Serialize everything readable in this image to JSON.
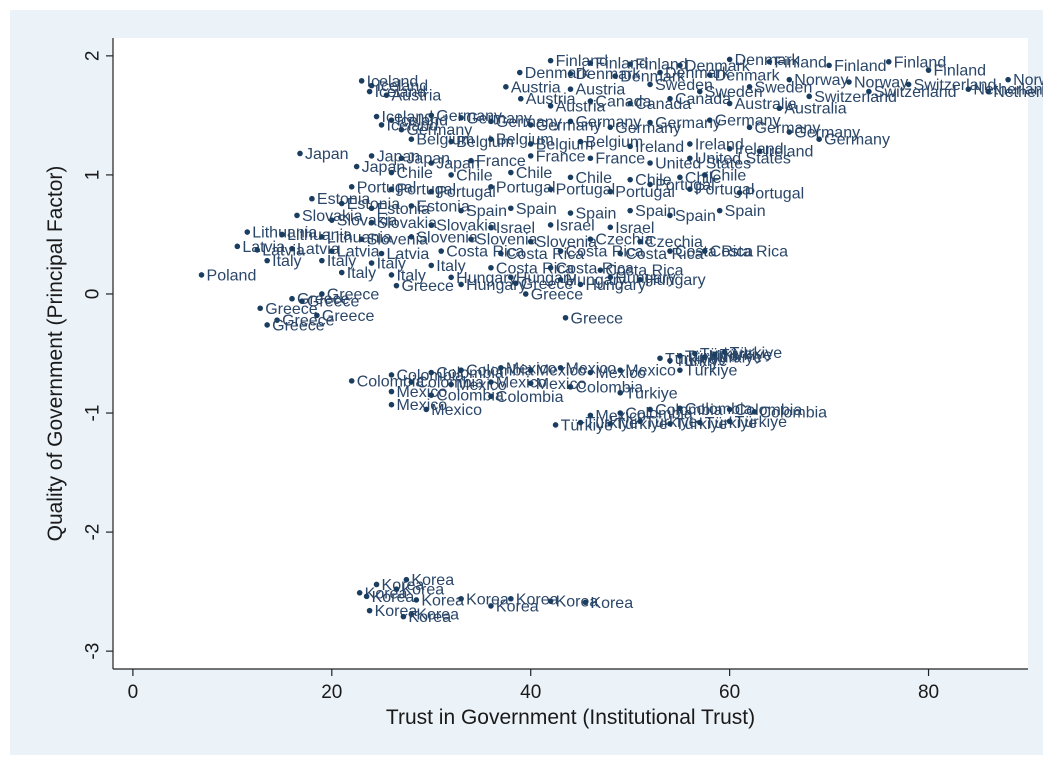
{
  "chart_data": {
    "type": "scatter",
    "title": "",
    "xlabel": "Trust in Government (Institutional Trust)",
    "ylabel": "Quality of Government (Principal Factor)",
    "xlim": [
      -2,
      90
    ],
    "ylim": [
      -3.15,
      2.15
    ],
    "xticks": [
      0,
      20,
      40,
      60,
      80
    ],
    "yticks": [
      -3,
      -2,
      -1,
      0,
      1,
      2
    ],
    "grid": false,
    "legend": "none",
    "marker_color": "#1a3d60",
    "label_color": "#2a4668",
    "background": "#ebf2f8",
    "plot_background": "#ffffff",
    "points": [
      {
        "x": 42.0,
        "y": 1.96,
        "label": "Finland"
      },
      {
        "x": 46.0,
        "y": 1.94,
        "label": "Finland"
      },
      {
        "x": 50.0,
        "y": 1.93,
        "label": "Finland"
      },
      {
        "x": 55.0,
        "y": 1.92,
        "label": "Denmark"
      },
      {
        "x": 60.0,
        "y": 1.97,
        "label": "Denmark"
      },
      {
        "x": 64.0,
        "y": 1.95,
        "label": "Finland"
      },
      {
        "x": 70.0,
        "y": 1.92,
        "label": "Finland"
      },
      {
        "x": 76.0,
        "y": 1.95,
        "label": "Finland"
      },
      {
        "x": 80.0,
        "y": 1.88,
        "label": "Finland"
      },
      {
        "x": 88.0,
        "y": 1.8,
        "label": "Norway"
      },
      {
        "x": 38.9,
        "y": 1.86,
        "label": "Denmark"
      },
      {
        "x": 44.0,
        "y": 1.85,
        "label": "Denmark"
      },
      {
        "x": 48.5,
        "y": 1.83,
        "label": "Denmark"
      },
      {
        "x": 53.0,
        "y": 1.86,
        "label": "Denmark"
      },
      {
        "x": 58.0,
        "y": 1.84,
        "label": "Denmark"
      },
      {
        "x": 66.0,
        "y": 1.8,
        "label": "Norway"
      },
      {
        "x": 72.0,
        "y": 1.78,
        "label": "Norway"
      },
      {
        "x": 78.0,
        "y": 1.76,
        "label": "Switzerland"
      },
      {
        "x": 84.0,
        "y": 1.72,
        "label": "Netherlands"
      },
      {
        "x": 86.0,
        "y": 1.7,
        "label": "Netherlands"
      },
      {
        "x": 37.5,
        "y": 1.74,
        "label": "Austria"
      },
      {
        "x": 44.0,
        "y": 1.72,
        "label": "Austria"
      },
      {
        "x": 52.0,
        "y": 1.76,
        "label": "Sweden"
      },
      {
        "x": 57.0,
        "y": 1.7,
        "label": "Sweden"
      },
      {
        "x": 62.0,
        "y": 1.74,
        "label": "Sweden"
      },
      {
        "x": 68.0,
        "y": 1.66,
        "label": "Switzerland"
      },
      {
        "x": 74.0,
        "y": 1.7,
        "label": "Switzerland"
      },
      {
        "x": 39.0,
        "y": 1.64,
        "label": "Austria"
      },
      {
        "x": 42.0,
        "y": 1.58,
        "label": "Austria"
      },
      {
        "x": 46.0,
        "y": 1.62,
        "label": "Canada"
      },
      {
        "x": 50.0,
        "y": 1.6,
        "label": "Canada"
      },
      {
        "x": 54.0,
        "y": 1.64,
        "label": "Canada"
      },
      {
        "x": 60.0,
        "y": 1.6,
        "label": "Australia"
      },
      {
        "x": 65.0,
        "y": 1.56,
        "label": "Australia"
      },
      {
        "x": 23.0,
        "y": 1.79,
        "label": "Iceland"
      },
      {
        "x": 24.0,
        "y": 1.75,
        "label": "Iceland"
      },
      {
        "x": 23.8,
        "y": 1.7,
        "label": "Iceland"
      },
      {
        "x": 25.5,
        "y": 1.67,
        "label": "Austria"
      },
      {
        "x": 24.5,
        "y": 1.49,
        "label": "Iceland"
      },
      {
        "x": 26.0,
        "y": 1.46,
        "label": "Iceland"
      },
      {
        "x": 25.0,
        "y": 1.42,
        "label": "Iceland"
      },
      {
        "x": 27.0,
        "y": 1.38,
        "label": "Germany"
      },
      {
        "x": 30.0,
        "y": 1.5,
        "label": "Germany"
      },
      {
        "x": 33.0,
        "y": 1.48,
        "label": "Germany"
      },
      {
        "x": 36.0,
        "y": 1.45,
        "label": "Germany"
      },
      {
        "x": 40.0,
        "y": 1.42,
        "label": "Germany"
      },
      {
        "x": 44.0,
        "y": 1.45,
        "label": "Germany"
      },
      {
        "x": 48.0,
        "y": 1.4,
        "label": "Germany"
      },
      {
        "x": 52.0,
        "y": 1.44,
        "label": "Germany"
      },
      {
        "x": 58.0,
        "y": 1.46,
        "label": "Germany"
      },
      {
        "x": 62.0,
        "y": 1.4,
        "label": "Germany"
      },
      {
        "x": 66.0,
        "y": 1.36,
        "label": "Germany"
      },
      {
        "x": 69.0,
        "y": 1.3,
        "label": "Germany"
      },
      {
        "x": 28.0,
        "y": 1.3,
        "label": "Belgium"
      },
      {
        "x": 32.0,
        "y": 1.28,
        "label": "Belgium"
      },
      {
        "x": 36.0,
        "y": 1.3,
        "label": "Belgium"
      },
      {
        "x": 40.0,
        "y": 1.26,
        "label": "Belgium"
      },
      {
        "x": 45.0,
        "y": 1.28,
        "label": "Belgium"
      },
      {
        "x": 50.0,
        "y": 1.24,
        "label": "Ireland"
      },
      {
        "x": 56.0,
        "y": 1.26,
        "label": "Ireland"
      },
      {
        "x": 60.0,
        "y": 1.22,
        "label": "Ireland"
      },
      {
        "x": 63.0,
        "y": 1.2,
        "label": "Ireland"
      },
      {
        "x": 16.8,
        "y": 1.18,
        "label": "Japan"
      },
      {
        "x": 24.0,
        "y": 1.16,
        "label": "Japan"
      },
      {
        "x": 27.0,
        "y": 1.14,
        "label": "Japan"
      },
      {
        "x": 30.0,
        "y": 1.1,
        "label": "Japan"
      },
      {
        "x": 22.5,
        "y": 1.07,
        "label": "Japan"
      },
      {
        "x": 34.0,
        "y": 1.12,
        "label": "France"
      },
      {
        "x": 40.0,
        "y": 1.16,
        "label": "France"
      },
      {
        "x": 46.0,
        "y": 1.14,
        "label": "France"
      },
      {
        "x": 52.0,
        "y": 1.1,
        "label": "United States"
      },
      {
        "x": 56.0,
        "y": 1.14,
        "label": "United States"
      },
      {
        "x": 26.0,
        "y": 1.02,
        "label": "Chile"
      },
      {
        "x": 32.0,
        "y": 1.0,
        "label": "Chile"
      },
      {
        "x": 38.0,
        "y": 1.02,
        "label": "Chile"
      },
      {
        "x": 44.0,
        "y": 0.98,
        "label": "Chile"
      },
      {
        "x": 50.0,
        "y": 0.96,
        "label": "Chile"
      },
      {
        "x": 55.0,
        "y": 0.98,
        "label": "Chile"
      },
      {
        "x": 57.5,
        "y": 1.0,
        "label": "Chile"
      },
      {
        "x": 22.0,
        "y": 0.9,
        "label": "Portugal"
      },
      {
        "x": 26.0,
        "y": 0.88,
        "label": "Portugal"
      },
      {
        "x": 30.0,
        "y": 0.86,
        "label": "Portugal"
      },
      {
        "x": 36.0,
        "y": 0.9,
        "label": "Portugal"
      },
      {
        "x": 42.0,
        "y": 0.88,
        "label": "Portugal"
      },
      {
        "x": 48.0,
        "y": 0.86,
        "label": "Portugal"
      },
      {
        "x": 52.0,
        "y": 0.92,
        "label": "Portugal"
      },
      {
        "x": 56.0,
        "y": 0.88,
        "label": "Portugal"
      },
      {
        "x": 61.0,
        "y": 0.85,
        "label": "Portugal"
      },
      {
        "x": 18.0,
        "y": 0.8,
        "label": "Estonia"
      },
      {
        "x": 21.0,
        "y": 0.76,
        "label": "Estonia"
      },
      {
        "x": 24.0,
        "y": 0.72,
        "label": "Estonia"
      },
      {
        "x": 28.0,
        "y": 0.74,
        "label": "Estonia"
      },
      {
        "x": 33.0,
        "y": 0.7,
        "label": "Spain"
      },
      {
        "x": 38.0,
        "y": 0.72,
        "label": "Spain"
      },
      {
        "x": 44.0,
        "y": 0.68,
        "label": "Spain"
      },
      {
        "x": 50.0,
        "y": 0.7,
        "label": "Spain"
      },
      {
        "x": 54.0,
        "y": 0.66,
        "label": "Spain"
      },
      {
        "x": 59.0,
        "y": 0.7,
        "label": "Spain"
      },
      {
        "x": 16.5,
        "y": 0.66,
        "label": "Slovakia"
      },
      {
        "x": 20.0,
        "y": 0.62,
        "label": "Slovakia"
      },
      {
        "x": 24.0,
        "y": 0.6,
        "label": "Slovakia"
      },
      {
        "x": 30.0,
        "y": 0.58,
        "label": "Slovakia"
      },
      {
        "x": 36.0,
        "y": 0.56,
        "label": "Israel"
      },
      {
        "x": 42.0,
        "y": 0.58,
        "label": "Israel"
      },
      {
        "x": 48.0,
        "y": 0.56,
        "label": "Israel"
      },
      {
        "x": 11.5,
        "y": 0.52,
        "label": "Lithuania"
      },
      {
        "x": 15.0,
        "y": 0.5,
        "label": "Lithuania"
      },
      {
        "x": 19.0,
        "y": 0.48,
        "label": "Lithuania"
      },
      {
        "x": 23.0,
        "y": 0.46,
        "label": "Slovenia"
      },
      {
        "x": 28.0,
        "y": 0.48,
        "label": "Slovenia"
      },
      {
        "x": 34.0,
        "y": 0.46,
        "label": "Slovenia"
      },
      {
        "x": 40.0,
        "y": 0.44,
        "label": "Slovenia"
      },
      {
        "x": 46.0,
        "y": 0.46,
        "label": "Czechia"
      },
      {
        "x": 51.0,
        "y": 0.44,
        "label": "Czechia"
      },
      {
        "x": 10.5,
        "y": 0.4,
        "label": "Latvia"
      },
      {
        "x": 12.5,
        "y": 0.37,
        "label": "Latvia"
      },
      {
        "x": 16.0,
        "y": 0.38,
        "label": "Latvia"
      },
      {
        "x": 20.0,
        "y": 0.36,
        "label": "Latvia"
      },
      {
        "x": 25.0,
        "y": 0.34,
        "label": "Latvia"
      },
      {
        "x": 31.0,
        "y": 0.36,
        "label": "Costa Rica"
      },
      {
        "x": 37.0,
        "y": 0.34,
        "label": "Costa Rica"
      },
      {
        "x": 43.0,
        "y": 0.36,
        "label": "Costa Rica"
      },
      {
        "x": 49.0,
        "y": 0.34,
        "label": "Costa Rica"
      },
      {
        "x": 54.0,
        "y": 0.36,
        "label": "Costa Rica"
      },
      {
        "x": 57.5,
        "y": 0.36,
        "label": "Costa Rica"
      },
      {
        "x": 13.5,
        "y": 0.28,
        "label": "Italy"
      },
      {
        "x": 19.0,
        "y": 0.28,
        "label": "Italy"
      },
      {
        "x": 24.0,
        "y": 0.26,
        "label": "Italy"
      },
      {
        "x": 30.0,
        "y": 0.24,
        "label": "Italy"
      },
      {
        "x": 36.0,
        "y": 0.22,
        "label": "Costa Rica"
      },
      {
        "x": 42.0,
        "y": 0.22,
        "label": "Costa Rica"
      },
      {
        "x": 47.0,
        "y": 0.2,
        "label": "Costa Rica"
      },
      {
        "x": 21.0,
        "y": 0.18,
        "label": "Italy"
      },
      {
        "x": 26.0,
        "y": 0.16,
        "label": "Italy"
      },
      {
        "x": 32.0,
        "y": 0.14,
        "label": "Hungary"
      },
      {
        "x": 38.0,
        "y": 0.14,
        "label": "Hungary"
      },
      {
        "x": 43.0,
        "y": 0.12,
        "label": "Hungary"
      },
      {
        "x": 48.0,
        "y": 0.14,
        "label": "Hungary"
      },
      {
        "x": 51.0,
        "y": 0.12,
        "label": "Hungary"
      },
      {
        "x": 6.9,
        "y": 0.16,
        "label": "Poland"
      },
      {
        "x": 26.5,
        "y": 0.07,
        "label": "Greece"
      },
      {
        "x": 33.0,
        "y": 0.08,
        "label": "Hungary"
      },
      {
        "x": 38.5,
        "y": 0.09,
        "label": "Greece"
      },
      {
        "x": 45.0,
        "y": 0.08,
        "label": "Hungary"
      },
      {
        "x": 39.5,
        "y": 0.0,
        "label": "Greece"
      },
      {
        "x": 19.0,
        "y": 0.0,
        "label": "Greece"
      },
      {
        "x": 16.0,
        "y": -0.04,
        "label": "Greece"
      },
      {
        "x": 17.0,
        "y": -0.06,
        "label": "Greece"
      },
      {
        "x": 12.8,
        "y": -0.12,
        "label": "Greece"
      },
      {
        "x": 18.5,
        "y": -0.18,
        "label": "Greece"
      },
      {
        "x": 14.5,
        "y": -0.22,
        "label": "Greece"
      },
      {
        "x": 13.5,
        "y": -0.26,
        "label": "Greece"
      },
      {
        "x": 43.5,
        "y": -0.2,
        "label": "Greece"
      },
      {
        "x": 53.0,
        "y": -0.54,
        "label": "Türkiye"
      },
      {
        "x": 54.0,
        "y": -0.56,
        "label": "Türkiye"
      },
      {
        "x": 55.0,
        "y": -0.52,
        "label": "Türkiye"
      },
      {
        "x": 56.5,
        "y": -0.5,
        "label": "Türkiye"
      },
      {
        "x": 57.5,
        "y": -0.53,
        "label": "Türkiye"
      },
      {
        "x": 58.5,
        "y": -0.51,
        "label": "Türkiye"
      },
      {
        "x": 59.5,
        "y": -0.49,
        "label": "Türkiye"
      },
      {
        "x": 55.0,
        "y": -0.64,
        "label": "Türkiye"
      },
      {
        "x": 26.0,
        "y": -0.68,
        "label": "Colombia"
      },
      {
        "x": 30.0,
        "y": -0.66,
        "label": "Colombia"
      },
      {
        "x": 33.0,
        "y": -0.64,
        "label": "Colombia"
      },
      {
        "x": 37.0,
        "y": -0.62,
        "label": "Mexico"
      },
      {
        "x": 40.0,
        "y": -0.64,
        "label": "Mexico"
      },
      {
        "x": 43.0,
        "y": -0.62,
        "label": "Mexico"
      },
      {
        "x": 46.0,
        "y": -0.66,
        "label": "Mexico"
      },
      {
        "x": 49.0,
        "y": -0.64,
        "label": "Mexico"
      },
      {
        "x": 22.0,
        "y": -0.73,
        "label": "Colombia"
      },
      {
        "x": 28.0,
        "y": -0.74,
        "label": "Colombia"
      },
      {
        "x": 32.0,
        "y": -0.76,
        "label": "Mexico"
      },
      {
        "x": 36.0,
        "y": -0.74,
        "label": "Mexico"
      },
      {
        "x": 40.0,
        "y": -0.75,
        "label": "Mexico"
      },
      {
        "x": 44.0,
        "y": -0.78,
        "label": "Colombia"
      },
      {
        "x": 49.0,
        "y": -0.83,
        "label": "Türkiye"
      },
      {
        "x": 26.0,
        "y": -0.82,
        "label": "Mexico"
      },
      {
        "x": 30.0,
        "y": -0.85,
        "label": "Colombia"
      },
      {
        "x": 36.0,
        "y": -0.86,
        "label": "Colombia"
      },
      {
        "x": 26.0,
        "y": -0.93,
        "label": "Mexico"
      },
      {
        "x": 29.5,
        "y": -0.97,
        "label": "Mexico"
      },
      {
        "x": 46.0,
        "y": -1.02,
        "label": "Mexico"
      },
      {
        "x": 49.0,
        "y": -1.0,
        "label": "Colombia"
      },
      {
        "x": 52.0,
        "y": -0.97,
        "label": "Colombia"
      },
      {
        "x": 55.0,
        "y": -0.96,
        "label": "Colombia"
      },
      {
        "x": 60.0,
        "y": -0.97,
        "label": "Colombia"
      },
      {
        "x": 62.5,
        "y": -0.99,
        "label": "Colombia"
      },
      {
        "x": 42.5,
        "y": -1.1,
        "label": "Türkiye"
      },
      {
        "x": 45.0,
        "y": -1.08,
        "label": "Türkiye"
      },
      {
        "x": 48.0,
        "y": -1.09,
        "label": "Türkiye"
      },
      {
        "x": 51.0,
        "y": -1.07,
        "label": "Türkiye"
      },
      {
        "x": 54.0,
        "y": -1.09,
        "label": "Türkiye"
      },
      {
        "x": 57.0,
        "y": -1.08,
        "label": "Türkiye"
      },
      {
        "x": 60.0,
        "y": -1.07,
        "label": "Türkiye"
      },
      {
        "x": 27.5,
        "y": -2.4,
        "label": "Korea"
      },
      {
        "x": 24.5,
        "y": -2.44,
        "label": "Korea"
      },
      {
        "x": 26.5,
        "y": -2.48,
        "label": "Korea"
      },
      {
        "x": 22.8,
        "y": -2.51,
        "label": "Korea"
      },
      {
        "x": 23.5,
        "y": -2.54,
        "label": "Korea"
      },
      {
        "x": 28.5,
        "y": -2.57,
        "label": "Korea"
      },
      {
        "x": 33.0,
        "y": -2.56,
        "label": "Korea"
      },
      {
        "x": 38.0,
        "y": -2.56,
        "label": "Korea"
      },
      {
        "x": 42.0,
        "y": -2.58,
        "label": "Korea"
      },
      {
        "x": 45.5,
        "y": -2.59,
        "label": "Korea"
      },
      {
        "x": 36.0,
        "y": -2.62,
        "label": "Korea"
      },
      {
        "x": 23.8,
        "y": -2.66,
        "label": "Korea"
      },
      {
        "x": 28.0,
        "y": -2.69,
        "label": "Korea"
      },
      {
        "x": 27.2,
        "y": -2.71,
        "label": "Korea"
      }
    ]
  }
}
